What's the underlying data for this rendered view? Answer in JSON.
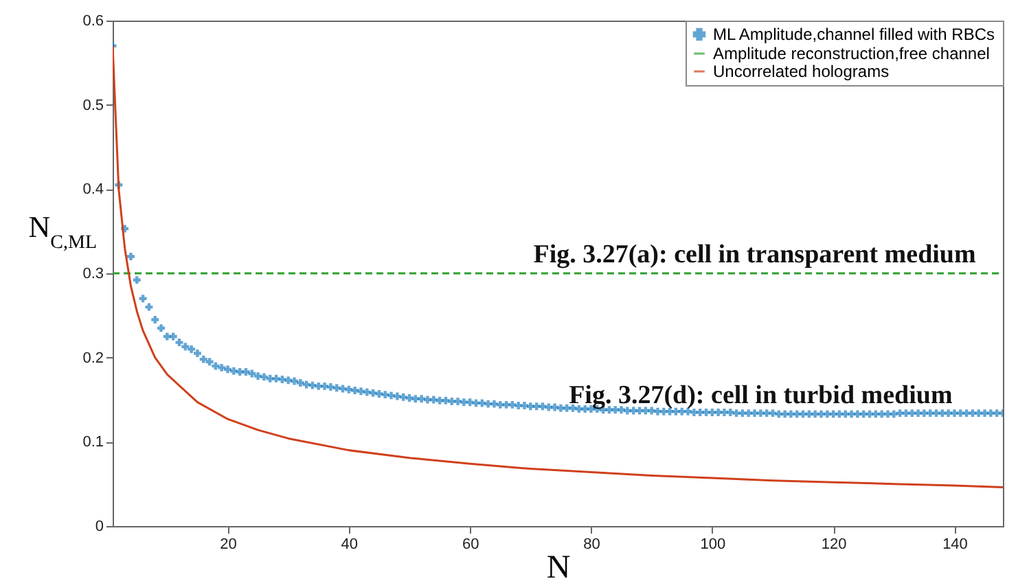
{
  "chart_data": {
    "type": "scatter",
    "xlabel": "N",
    "ylabel": "N$_{C,ML}$",
    "xlim": [
      1,
      148
    ],
    "ylim": [
      0,
      0.6
    ],
    "xticks": [
      20,
      40,
      60,
      80,
      100,
      120,
      140
    ],
    "yticks": [
      0,
      0.1,
      0.2,
      0.3,
      0.4,
      0.5,
      0.6
    ],
    "grid": false,
    "legend": "top right",
    "series": [
      {
        "name": "ML Amplitude,channel filled with RBCs",
        "marker": "cross",
        "color": "#1f7fc0",
        "x": [
          1,
          2,
          3,
          4,
          5,
          6,
          7,
          8,
          9,
          10,
          11,
          12,
          13,
          14,
          15,
          16,
          17,
          18,
          19,
          20,
          21,
          22,
          23,
          24,
          25,
          26,
          27,
          28,
          29,
          30,
          31,
          32,
          33,
          34,
          35,
          36,
          37,
          38,
          39,
          40,
          41,
          42,
          43,
          44,
          45,
          46,
          47,
          48,
          49,
          50,
          51,
          52,
          53,
          54,
          55,
          56,
          57,
          58,
          59,
          60,
          61,
          62,
          63,
          64,
          65,
          66,
          67,
          68,
          69,
          70,
          71,
          72,
          73,
          74,
          75,
          76,
          77,
          78,
          79,
          80,
          81,
          82,
          83,
          84,
          85,
          86,
          87,
          88,
          89,
          90,
          91,
          92,
          93,
          94,
          95,
          96,
          97,
          98,
          99,
          100,
          101,
          102,
          103,
          104,
          105,
          106,
          107,
          108,
          109,
          110,
          111,
          112,
          113,
          114,
          115,
          116,
          117,
          118,
          119,
          120,
          121,
          122,
          123,
          124,
          125,
          126,
          127,
          128,
          129,
          130,
          131,
          132,
          133,
          134,
          135,
          136,
          137,
          138,
          139,
          140,
          141,
          142,
          143,
          144,
          145,
          146,
          147,
          148
        ],
        "values": [
          0.57,
          0.405,
          0.353,
          0.32,
          0.292,
          0.27,
          0.26,
          0.245,
          0.235,
          0.225,
          0.225,
          0.218,
          0.213,
          0.21,
          0.205,
          0.198,
          0.195,
          0.19,
          0.188,
          0.186,
          0.184,
          0.183,
          0.183,
          0.181,
          0.178,
          0.177,
          0.175,
          0.175,
          0.174,
          0.173,
          0.172,
          0.17,
          0.168,
          0.167,
          0.166,
          0.166,
          0.165,
          0.164,
          0.163,
          0.162,
          0.161,
          0.16,
          0.159,
          0.158,
          0.157,
          0.156,
          0.155,
          0.154,
          0.153,
          0.152,
          0.151,
          0.151,
          0.15,
          0.15,
          0.149,
          0.149,
          0.148,
          0.148,
          0.147,
          0.147,
          0.146,
          0.146,
          0.145,
          0.145,
          0.144,
          0.144,
          0.144,
          0.143,
          0.143,
          0.142,
          0.142,
          0.142,
          0.141,
          0.141,
          0.14,
          0.14,
          0.14,
          0.139,
          0.139,
          0.139,
          0.139,
          0.138,
          0.138,
          0.138,
          0.138,
          0.137,
          0.137,
          0.137,
          0.137,
          0.137,
          0.136,
          0.136,
          0.136,
          0.136,
          0.136,
          0.136,
          0.135,
          0.135,
          0.135,
          0.135,
          0.135,
          0.135,
          0.135,
          0.134,
          0.134,
          0.134,
          0.134,
          0.134,
          0.134,
          0.134,
          0.133,
          0.133,
          0.133,
          0.133,
          0.133,
          0.133,
          0.133,
          0.133,
          0.133,
          0.133,
          0.133,
          0.133,
          0.133,
          0.133,
          0.133,
          0.133,
          0.133,
          0.133,
          0.133,
          0.133,
          0.134,
          0.134,
          0.134,
          0.134,
          0.134,
          0.134,
          0.134,
          0.134,
          0.134,
          0.134,
          0.134,
          0.134,
          0.134,
          0.134,
          0.134,
          0.134,
          0.134,
          0.134
        ]
      },
      {
        "name": "Amplitude reconstruction,free channel",
        "type": "line",
        "line_style": "dashed",
        "color": "#2ca02c",
        "x": [
          1,
          148
        ],
        "values": [
          0.3,
          0.3
        ]
      },
      {
        "name": "Uncorrelated holograms",
        "type": "line",
        "line_style": "solid",
        "color": "#d0401c",
        "x": [
          1,
          2,
          3,
          4,
          5,
          6,
          8,
          10,
          15,
          20,
          25,
          30,
          40,
          50,
          60,
          70,
          80,
          90,
          100,
          110,
          120,
          130,
          140,
          148
        ],
        "values": [
          0.57,
          0.4,
          0.33,
          0.285,
          0.255,
          0.232,
          0.2,
          0.18,
          0.147,
          0.127,
          0.114,
          0.104,
          0.09,
          0.081,
          0.074,
          0.068,
          0.064,
          0.06,
          0.057,
          0.054,
          0.052,
          0.05,
          0.048,
          0.046
        ]
      }
    ],
    "annotations": [
      {
        "text": "Fig. 3.27(a): cell in transparent medium",
        "x": 107,
        "y": 0.3
      },
      {
        "text": "Fig. 3.27(d): cell in turbid medium",
        "x": 108,
        "y": 0.133
      }
    ]
  }
}
